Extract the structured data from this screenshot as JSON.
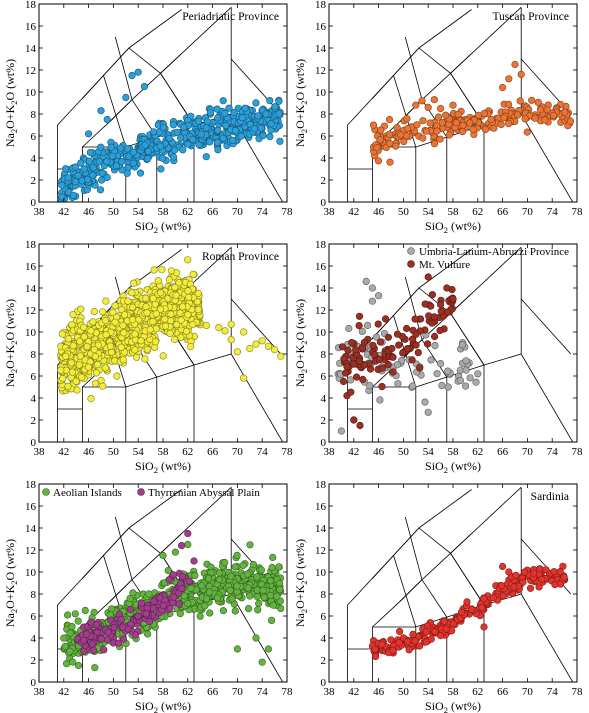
{
  "figure": {
    "panels": [
      {
        "id": "p1",
        "title": "Periadriatic Province",
        "title_pos": "top-right",
        "xlabel": {
          "pre": "SiO",
          "sub": "2",
          "post": " (wt%)"
        },
        "ylabel": {
          "parts": [
            "Na",
            "2",
            "O+K",
            "2",
            "O (wt%)"
          ]
        }
      },
      {
        "id": "p2",
        "title": "Tuscan Province",
        "title_pos": "top-right",
        "xlabel": {
          "pre": "SiO",
          "sub": "2",
          "post": " (wt%)"
        },
        "ylabel": {
          "parts": [
            "Na",
            "2",
            "O+K",
            "2",
            "O (wt%)"
          ]
        }
      },
      {
        "id": "p3",
        "title": "Roman Province",
        "title_pos": "top-right",
        "xlabel": {
          "pre": "SiO",
          "sub": "2",
          "post": " (wt%)"
        },
        "ylabel": {
          "parts": [
            "Na",
            "2",
            "O+K",
            "2",
            "O (wt%)"
          ]
        }
      },
      {
        "id": "p4",
        "title": "",
        "title_pos": "",
        "xlabel": {
          "pre": "SiO",
          "sub": "2",
          "post": " (wt%)"
        },
        "ylabel": {
          "parts": [
            "Na",
            "2",
            "O+K",
            "2",
            "O (wt%)"
          ]
        }
      },
      {
        "id": "p5",
        "title": "",
        "title_pos": "",
        "xlabel": {
          "pre": "SiO",
          "sub": "2",
          "post": " (wt%)"
        },
        "ylabel": {
          "parts": [
            "Na",
            "2",
            "O+K",
            "2",
            "O (wt%)"
          ]
        }
      },
      {
        "id": "p6",
        "title": "Sardinia",
        "title_pos": "top-right",
        "xlabel": {
          "pre": "SiO",
          "sub": "2",
          "post": " (wt%)"
        },
        "ylabel": {
          "parts": [
            "Na",
            "2",
            "O+K",
            "2",
            "O (wt%)"
          ]
        }
      }
    ],
    "legends": {
      "p4": [
        {
          "label": "Umbria-Latium-Abruzzi Province",
          "color": "#a9a9a9"
        },
        {
          "label": "Mt. Vulture",
          "color": "#9b2f22"
        }
      ],
      "p5": [
        {
          "label": "Aeolian Islands",
          "color": "#63b33f"
        },
        {
          "label": "Thyrrenian Abyssal Plain",
          "color": "#a23d8c"
        }
      ]
    }
  },
  "chart_data": [
    {
      "type": "scatter",
      "panel": "p1",
      "title": "Periadriatic Province",
      "xlabel": "SiO2 (wt%)",
      "ylabel": "Na2O+K2O (wt%)",
      "xlim": [
        38,
        78
      ],
      "ylim": [
        0,
        18
      ],
      "xticks": [
        38,
        42,
        46,
        50,
        54,
        58,
        62,
        66,
        70,
        74,
        78
      ],
      "yticks": [
        0,
        2,
        4,
        6,
        8,
        10,
        12,
        14,
        16,
        18
      ],
      "series": [
        {
          "color": "#2b9fd9",
          "count": 560,
          "radius": 3.3,
          "trend": [
            [
              41.5,
              1.2
            ],
            [
              50,
              4.0
            ],
            [
              60,
              5.8
            ],
            [
              70,
              7.0
            ],
            [
              77,
              8.0
            ]
          ],
          "scatter": [
            1.3,
            1.5
          ],
          "x_range": [
            41.5,
            77
          ],
          "outliers": [
            [
              53,
              11.5
            ],
            [
              54,
              11.8
            ],
            [
              55,
              10.5
            ],
            [
              48,
              8.3
            ],
            [
              49,
              7.5
            ],
            [
              52,
              9.5
            ],
            [
              46,
              6.2
            ]
          ]
        }
      ]
    },
    {
      "type": "scatter",
      "panel": "p2",
      "title": "Tuscan Province",
      "xlabel": "SiO2 (wt%)",
      "ylabel": "Na2O+K2O (wt%)",
      "xlim": [
        38,
        78
      ],
      "ylim": [
        0,
        18
      ],
      "xticks": [
        38,
        42,
        46,
        50,
        54,
        58,
        62,
        66,
        70,
        74,
        78
      ],
      "yticks": [
        0,
        2,
        4,
        6,
        8,
        10,
        12,
        14,
        16,
        18
      ],
      "series": [
        {
          "color": "#ea7434",
          "count": 230,
          "radius": 3.3,
          "trend": [
            [
              45,
              5.3
            ],
            [
              52,
              6.3
            ],
            [
              58,
              7.0
            ],
            [
              64,
              7.6
            ],
            [
              70,
              8.0
            ],
            [
              77,
              7.8
            ]
          ],
          "scatter": [
            0.7,
            1.3
          ],
          "x_range": [
            45,
            77
          ],
          "outliers": [
            [
              52,
              8.8
            ],
            [
              53,
              9.2
            ],
            [
              54,
              8.6
            ],
            [
              55,
              9.3
            ],
            [
              56,
              8.5
            ],
            [
              68,
              12.5
            ],
            [
              67,
              11.2
            ],
            [
              69,
              11.6
            ],
            [
              66,
              10.4
            ],
            [
              58,
              8.8
            ]
          ]
        }
      ]
    },
    {
      "type": "scatter",
      "panel": "p3",
      "title": "Roman Province",
      "xlabel": "SiO2 (wt%)",
      "ylabel": "Na2O+K2O (wt%)",
      "xlim": [
        38,
        78
      ],
      "ylim": [
        0,
        18
      ],
      "xticks": [
        38,
        42,
        46,
        50,
        54,
        58,
        62,
        66,
        70,
        74,
        78
      ],
      "yticks": [
        0,
        2,
        4,
        6,
        8,
        10,
        12,
        14,
        16,
        18
      ],
      "series": [
        {
          "color": "#f2ec3a",
          "count": 1100,
          "radius": 3.3,
          "trend": [
            [
              41.5,
              7.5
            ],
            [
              48,
              9.0
            ],
            [
              54,
              10.8
            ],
            [
              60,
              12.5
            ],
            [
              64,
              12.0
            ]
          ],
          "scatter": [
            2.0,
            2.6
          ],
          "x_range": [
            41.5,
            64
          ],
          "outliers": [
            [
              65,
              10.6
            ],
            [
              67,
              10.4
            ],
            [
              69,
              10.7
            ],
            [
              71,
              10.0
            ],
            [
              72,
              8.5
            ],
            [
              73,
              8.9
            ],
            [
              74,
              9.2
            ],
            [
              75,
              8.7
            ],
            [
              76,
              8.4
            ],
            [
              77,
              7.8
            ],
            [
              70,
              8.2
            ],
            [
              71,
              5.8
            ],
            [
              69,
              9.3
            ],
            [
              68,
              10.1
            ]
          ]
        }
      ]
    },
    {
      "type": "scatter",
      "panel": "p4",
      "xlabel": "SiO2 (wt%)",
      "ylabel": "Na2O+K2O (wt%)",
      "xlim": [
        38,
        78
      ],
      "ylim": [
        0,
        18
      ],
      "xticks": [
        38,
        42,
        46,
        50,
        54,
        58,
        62,
        66,
        70,
        74,
        78
      ],
      "yticks": [
        0,
        2,
        4,
        6,
        8,
        10,
        12,
        14,
        16,
        18
      ],
      "legend": "top-right",
      "series": [
        {
          "name": "Umbria-Latium-Abruzzi Province",
          "color": "#a9a9a9",
          "count": 85,
          "radius": 3.3,
          "trend": [
            [
              39,
              7.0
            ],
            [
              44,
              8.0
            ],
            [
              48,
              7.5
            ],
            [
              52,
              6.5
            ],
            [
              62,
              6.0
            ]
          ],
          "scatter": [
            1.8,
            2.8
          ],
          "x_range": [
            38.5,
            62.5
          ],
          "outliers": [
            [
              44,
              14.6
            ],
            [
              45,
              14.0
            ],
            [
              46,
              13.3
            ],
            [
              45,
              12.8
            ],
            [
              40,
              1.0
            ],
            [
              42,
              2.0
            ],
            [
              54,
              2.7
            ],
            [
              62,
              6.2
            ]
          ]
        },
        {
          "name": "Mt. Vulture",
          "color": "#9b2f22",
          "count": 120,
          "radius": 3.3,
          "trend": [
            [
              40,
              7.0
            ],
            [
              45,
              8.0
            ],
            [
              50,
              8.5
            ],
            [
              55,
              11.0
            ],
            [
              58,
              13.0
            ]
          ],
          "scatter": [
            1.2,
            2.5
          ],
          "x_range": [
            40,
            58
          ],
          "outliers": [
            [
              54,
              15.0
            ],
            [
              57,
              14.0
            ],
            [
              58,
              13.0
            ],
            [
              56,
              12.5
            ],
            [
              42,
              2.0
            ],
            [
              43,
              1.5
            ]
          ]
        }
      ]
    },
    {
      "type": "scatter",
      "panel": "p5",
      "xlabel": "SiO2 (wt%)",
      "ylabel": "Na2O+K2O (wt%)",
      "xlim": [
        38,
        78
      ],
      "ylim": [
        0,
        18
      ],
      "xticks": [
        38,
        42,
        46,
        50,
        54,
        58,
        62,
        66,
        70,
        74,
        78
      ],
      "yticks": [
        0,
        2,
        4,
        6,
        8,
        10,
        12,
        14,
        16,
        18
      ],
      "legend": "top-left",
      "series": [
        {
          "name": "Aeolian Islands",
          "color": "#63b33f",
          "count": 720,
          "radius": 3.3,
          "trend": [
            [
              44,
              3.5
            ],
            [
              50,
              4.8
            ],
            [
              55,
              6.5
            ],
            [
              60,
              7.8
            ],
            [
              66,
              8.6
            ],
            [
              72,
              9.0
            ],
            [
              77,
              8.5
            ]
          ],
          "scatter": [
            1.3,
            1.8
          ],
          "x_range": [
            42,
            77
          ],
          "outliers": [
            [
              62,
              12.5
            ],
            [
              60,
              11.8
            ],
            [
              58,
              11.5
            ],
            [
              43,
              2.8
            ],
            [
              47,
              1.3
            ],
            [
              70,
              3.0
            ],
            [
              73,
              4.0
            ],
            [
              75,
              3.0
            ],
            [
              74,
              1.8
            ]
          ]
        },
        {
          "name": "Thyrrenian Abyssal Plain",
          "color": "#a23d8c",
          "count": 150,
          "radius": 3.3,
          "trend": [
            [
              45,
              4.0
            ],
            [
              49,
              4.5
            ],
            [
              52,
              5.0
            ],
            [
              56,
              6.5
            ],
            [
              60,
              8.0
            ],
            [
              62,
              9.5
            ]
          ],
          "scatter": [
            0.8,
            1.3
          ],
          "x_range": [
            44,
            62.5
          ],
          "outliers": [
            [
              62,
              13.5
            ],
            [
              61,
              12.4
            ],
            [
              59,
              9.3
            ],
            [
              63,
              11.0
            ]
          ]
        }
      ]
    },
    {
      "type": "scatter",
      "panel": "p6",
      "title": "Sardinia",
      "xlabel": "SiO2 (wt%)",
      "ylabel": "Na2O+K2O (wt%)",
      "xlim": [
        38,
        78
      ],
      "ylim": [
        0,
        18
      ],
      "xticks": [
        38,
        42,
        46,
        50,
        54,
        58,
        62,
        66,
        70,
        74,
        78
      ],
      "yticks": [
        0,
        2,
        4,
        6,
        8,
        10,
        12,
        14,
        16,
        18
      ],
      "series": [
        {
          "color": "#e3332c",
          "count": 240,
          "radius": 3.3,
          "trend": [
            [
              45,
              3.0
            ],
            [
              50,
              3.5
            ],
            [
              55,
              4.5
            ],
            [
              60,
              6.0
            ],
            [
              65,
              8.0
            ],
            [
              70,
              9.5
            ],
            [
              76,
              9.5
            ]
          ],
          "scatter": [
            0.6,
            0.7
          ],
          "x_range": [
            45,
            76
          ],
          "outliers": [
            [
              66,
              10.5
            ],
            [
              67,
              10.0
            ],
            [
              72,
              10.3
            ],
            [
              73,
              10.2
            ],
            [
              71,
              9.9
            ],
            [
              63,
              5.0
            ],
            [
              61,
              6.6
            ]
          ]
        }
      ]
    }
  ]
}
